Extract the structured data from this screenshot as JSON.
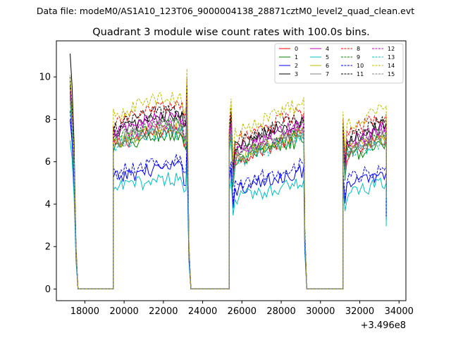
{
  "chart_data": {
    "type": "line",
    "suptitle": "Data file: modeM0/AS1A10_123T06_9000004138_28871cztM0_level2_quad_clean.evt",
    "title": "Quadrant 3 module wise count rates with 100.0s bins.",
    "xlabel": "",
    "ylabel": "",
    "x_offset_label": "+3.496e8",
    "xlim": [
      16550,
      34350
    ],
    "ylim": [
      -0.55,
      11.7
    ],
    "xticks": [
      18000,
      20000,
      22000,
      24000,
      26000,
      28000,
      30000,
      32000,
      34000
    ],
    "yticks": [
      0,
      2,
      4,
      6,
      8,
      10
    ],
    "bin_seconds": 100,
    "segments": [
      [
        17250,
        17650
      ],
      [
        19450,
        23150
      ],
      [
        25350,
        29150
      ],
      [
        31150,
        33350
      ]
    ],
    "gaps": [
      [
        17650,
        19450
      ],
      [
        23150,
        25350
      ],
      [
        29150,
        31150
      ]
    ],
    "legend": {
      "location": "top-right",
      "columns": 4
    },
    "series": [
      {
        "name": "0",
        "color": "#ff0000",
        "dash": "solid",
        "level": 7.3,
        "first": 9.3
      },
      {
        "name": "1",
        "color": "#008000",
        "dash": "solid",
        "level": 7.1,
        "first": 9.0
      },
      {
        "name": "2",
        "color": "#0000ff",
        "dash": "solid",
        "level": 5.6,
        "first": 8.0
      },
      {
        "name": "3",
        "color": "#000000",
        "dash": "solid",
        "level": 8.0,
        "first": 11.1
      },
      {
        "name": "4",
        "color": "#bf00bf",
        "dash": "solid",
        "level": 7.9,
        "first": 9.6
      },
      {
        "name": "5",
        "color": "#00bfbf",
        "dash": "solid",
        "level": 5.1,
        "first": 7.0
      },
      {
        "name": "6",
        "color": "#bfbf00",
        "dash": "solid",
        "level": 7.4,
        "first": 9.2
      },
      {
        "name": "7",
        "color": "#808080",
        "dash": "solid",
        "level": 7.5,
        "first": 9.1
      },
      {
        "name": "8",
        "color": "#ff0000",
        "dash": "dashed",
        "level": 8.4,
        "first": 9.8
      },
      {
        "name": "9",
        "color": "#008000",
        "dash": "dashed",
        "level": 7.6,
        "first": 9.3
      },
      {
        "name": "10",
        "color": "#0000ff",
        "dash": "dashed",
        "level": 5.9,
        "first": 8.4
      },
      {
        "name": "11",
        "color": "#000000",
        "dash": "dashed",
        "level": 8.2,
        "first": 10.0
      },
      {
        "name": "12",
        "color": "#bf00bf",
        "dash": "dashed",
        "level": 7.7,
        "first": 9.5
      },
      {
        "name": "13",
        "color": "#00bfbf",
        "dash": "dashed",
        "level": 7.2,
        "first": 8.8
      },
      {
        "name": "14",
        "color": "#bfbf00",
        "dash": "dashed",
        "level": 8.8,
        "first": 10.1
      },
      {
        "name": "15",
        "color": "#808080",
        "dash": "dashed",
        "level": 7.4,
        "first": 9.2
      }
    ]
  }
}
